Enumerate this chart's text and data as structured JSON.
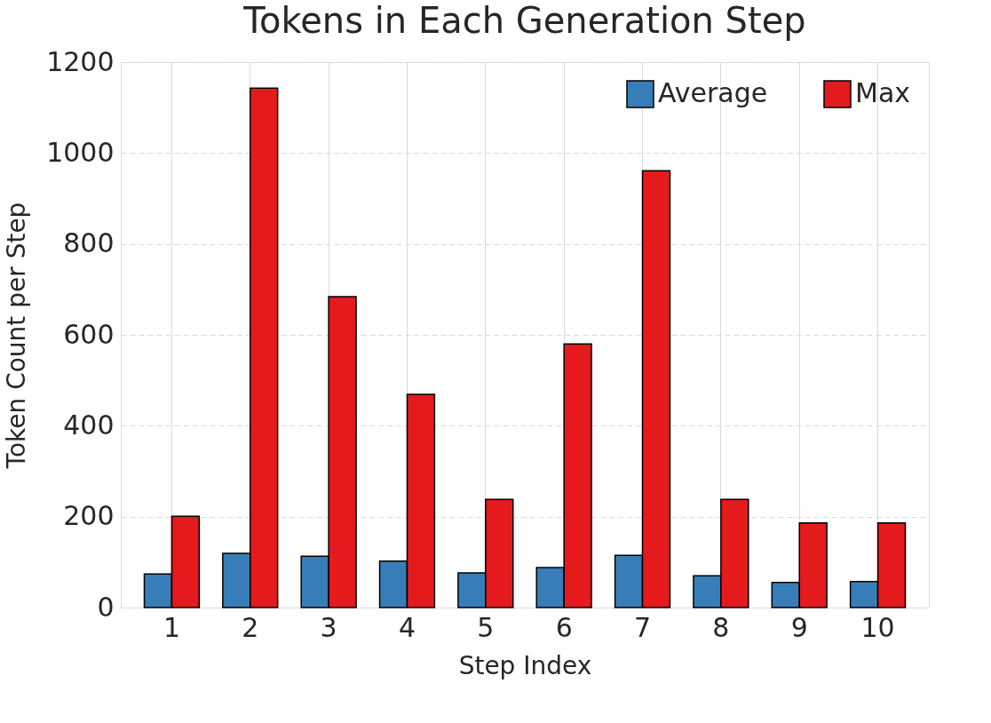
{
  "chart_data": {
    "type": "bar",
    "title": "Tokens in Each Generation Step",
    "xlabel": "Step Index",
    "ylabel": "Token Count per Step",
    "categories": [
      "1",
      "2",
      "3",
      "4",
      "5",
      "6",
      "7",
      "8",
      "9",
      "10"
    ],
    "series": [
      {
        "name": "Average",
        "color": "#377eb8",
        "values": [
          74,
          119,
          113,
          102,
          76,
          88,
          115,
          70,
          55,
          57
        ]
      },
      {
        "name": "Max",
        "color": "#e41a1c",
        "values": [
          201,
          1143,
          684,
          469,
          238,
          580,
          961,
          238,
          186,
          186
        ]
      }
    ],
    "ylim": [
      0,
      1200
    ],
    "yticks": [
      0,
      200,
      400,
      600,
      800,
      1000,
      1200
    ],
    "grid": true,
    "legend": "top right"
  }
}
